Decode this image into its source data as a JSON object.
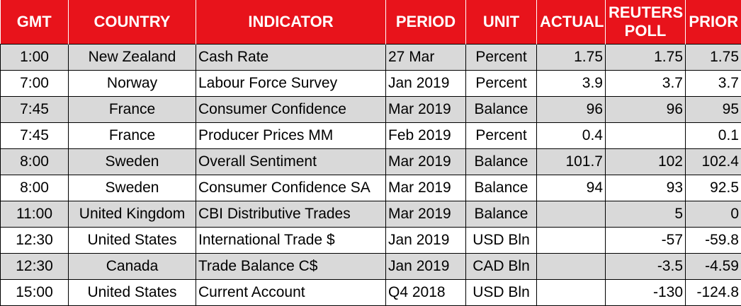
{
  "header": {
    "gmt": "GMT",
    "country": "COUNTRY",
    "indicator": "INDICATOR",
    "period": "PERIOD",
    "unit": "UNIT",
    "actual": "ACTUAL",
    "reuters_poll": "REUTERS POLL",
    "prior": "PRIOR"
  },
  "rows": [
    {
      "gmt": "1:00",
      "country": "New Zealand",
      "indicator": "Cash Rate",
      "period": "27 Mar",
      "unit": "Percent",
      "actual": "1.75",
      "poll": "1.75",
      "prior": "1.75"
    },
    {
      "gmt": "7:00",
      "country": "Norway",
      "indicator": "Labour Force Survey",
      "period": "Jan 2019",
      "unit": "Percent",
      "actual": "3.9",
      "poll": "3.7",
      "prior": "3.7"
    },
    {
      "gmt": "7:45",
      "country": "France",
      "indicator": "Consumer Confidence",
      "period": "Mar 2019",
      "unit": "Balance",
      "actual": "96",
      "poll": "96",
      "prior": "95"
    },
    {
      "gmt": "7:45",
      "country": "France",
      "indicator": "Producer Prices MM",
      "period": "Feb 2019",
      "unit": "Percent",
      "actual": "0.4",
      "poll": "",
      "prior": "0.1"
    },
    {
      "gmt": "8:00",
      "country": "Sweden",
      "indicator": "Overall Sentiment",
      "period": "Mar 2019",
      "unit": "Balance",
      "actual": "101.7",
      "poll": "102",
      "prior": "102.4"
    },
    {
      "gmt": "8:00",
      "country": "Sweden",
      "indicator": "Consumer Confidence SA",
      "period": "Mar 2019",
      "unit": "Balance",
      "actual": "94",
      "poll": "93",
      "prior": "92.5"
    },
    {
      "gmt": "11:00",
      "country": "United Kingdom",
      "indicator": "CBI Distributive Trades",
      "period": "Mar 2019",
      "unit": "Balance",
      "actual": "",
      "poll": "5",
      "prior": "0"
    },
    {
      "gmt": "12:30",
      "country": "United States",
      "indicator": "International Trade $",
      "period": "Jan 2019",
      "unit": "USD Bln",
      "actual": "",
      "poll": "-57",
      "prior": "-59.8"
    },
    {
      "gmt": "12:30",
      "country": "Canada",
      "indicator": "Trade Balance C$",
      "period": "Jan 2019",
      "unit": "CAD Bln",
      "actual": "",
      "poll": "-3.5",
      "prior": "-4.59"
    },
    {
      "gmt": "15:00",
      "country": "United States",
      "indicator": "Current Account",
      "period": "Q4 2018",
      "unit": "USD Bln",
      "actual": "",
      "poll": "-130",
      "prior": "-124.8"
    }
  ],
  "colors": {
    "header_bg": "#e8131b",
    "header_text": "#ffffff",
    "stripe_bg": "#d9d9d9"
  }
}
